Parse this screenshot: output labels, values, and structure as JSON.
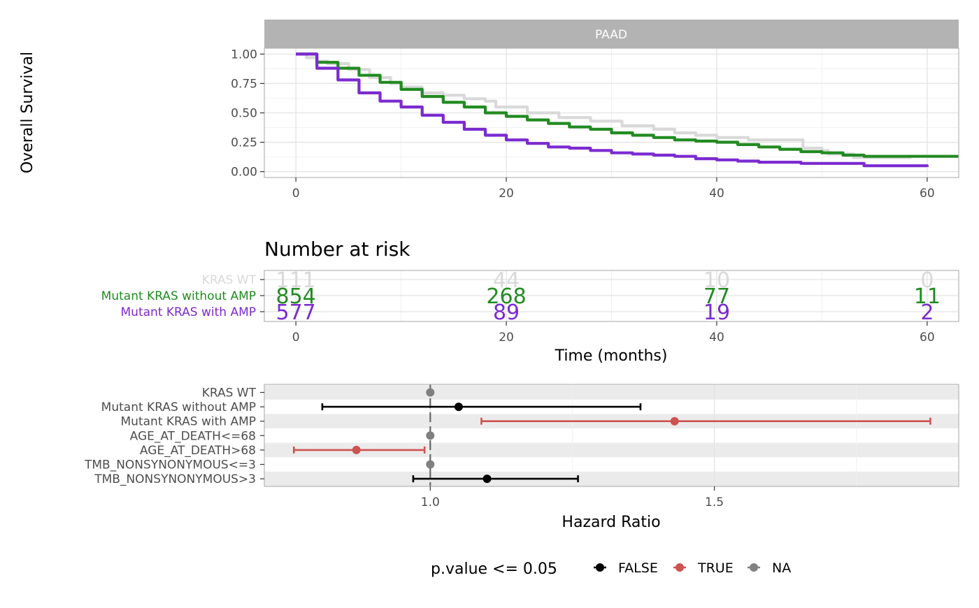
{
  "survival": {
    "panel_label": "PAAD",
    "ylabel": "Overall Survival",
    "y_ticks": [
      "0.00",
      "0.25",
      "0.50",
      "0.75",
      "1.00"
    ],
    "x_ticks": [
      "0",
      "20",
      "40",
      "60"
    ]
  },
  "risk_table": {
    "title": "Number at risk",
    "xlabel": "Time (months)",
    "x_ticks": [
      "0",
      "20",
      "40",
      "60"
    ]
  },
  "forest": {
    "xlabel": "Hazard Ratio",
    "x_ticks": [
      "1.0",
      "1.5"
    ]
  },
  "legend": {
    "title": "p.value <= 0.05",
    "items": [
      {
        "label": "FALSE",
        "color": "#000000"
      },
      {
        "label": "TRUE",
        "color": "#cd5350"
      },
      {
        "label": "NA",
        "color": "#808080"
      }
    ]
  },
  "chart_data": [
    {
      "type": "line",
      "title": "PAAD",
      "xlabel": "",
      "ylabel": "Overall Survival",
      "xlim": [
        -3,
        63
      ],
      "ylim": [
        -0.05,
        1.05
      ],
      "x_ticks": [
        0,
        20,
        40,
        60
      ],
      "y_ticks": [
        0,
        0.25,
        0.5,
        0.75,
        1.0
      ],
      "grid": true,
      "series": [
        {
          "name": "KRAS WT",
          "color": "#d9d9d9",
          "points": [
            [
              0,
              1.0
            ],
            [
              1,
              0.97
            ],
            [
              2,
              0.94
            ],
            [
              3,
              0.92
            ],
            [
              5,
              0.87
            ],
            [
              7,
              0.8
            ],
            [
              9,
              0.75
            ],
            [
              10,
              0.72
            ],
            [
              12,
              0.67
            ],
            [
              14,
              0.65
            ],
            [
              16,
              0.62
            ],
            [
              18,
              0.6
            ],
            [
              19,
              0.55
            ],
            [
              21,
              0.55
            ],
            [
              22,
              0.5
            ],
            [
              25,
              0.46
            ],
            [
              28,
              0.43
            ],
            [
              31,
              0.39
            ],
            [
              34,
              0.36
            ],
            [
              36,
              0.33
            ],
            [
              38,
              0.31
            ],
            [
              40,
              0.29
            ],
            [
              43,
              0.27
            ],
            [
              46,
              0.27
            ],
            [
              48,
              0.27
            ],
            [
              48.2,
              0.2
            ],
            [
              50,
              0.18
            ],
            [
              50.6,
              0.15
            ],
            [
              53,
              0.12
            ],
            [
              58.5,
              0.12
            ]
          ]
        },
        {
          "name": "Mutant KRAS without AMP",
          "color": "#228b22",
          "points": [
            [
              0,
              1.0
            ],
            [
              2,
              0.93
            ],
            [
              4,
              0.88
            ],
            [
              6,
              0.82
            ],
            [
              8,
              0.76
            ],
            [
              10,
              0.7
            ],
            [
              12,
              0.64
            ],
            [
              14,
              0.59
            ],
            [
              16,
              0.55
            ],
            [
              18,
              0.5
            ],
            [
              20,
              0.47
            ],
            [
              22,
              0.44
            ],
            [
              24,
              0.41
            ],
            [
              26,
              0.38
            ],
            [
              28,
              0.36
            ],
            [
              30,
              0.33
            ],
            [
              32,
              0.31
            ],
            [
              34,
              0.29
            ],
            [
              36,
              0.27
            ],
            [
              38,
              0.26
            ],
            [
              40,
              0.25
            ],
            [
              42,
              0.23
            ],
            [
              44,
              0.21
            ],
            [
              46,
              0.19
            ],
            [
              48,
              0.17
            ],
            [
              50,
              0.16
            ],
            [
              52,
              0.14
            ],
            [
              54,
              0.13
            ],
            [
              56,
              0.13
            ],
            [
              58,
              0.13
            ],
            [
              60,
              0.13
            ],
            [
              63,
              0.13
            ]
          ]
        },
        {
          "name": "Mutant KRAS with AMP",
          "color": "#7b2bd0",
          "points": [
            [
              0,
              1.0
            ],
            [
              2,
              0.88
            ],
            [
              4,
              0.78
            ],
            [
              6,
              0.67
            ],
            [
              8,
              0.6
            ],
            [
              10,
              0.55
            ],
            [
              12,
              0.48
            ],
            [
              14,
              0.42
            ],
            [
              16,
              0.36
            ],
            [
              18,
              0.31
            ],
            [
              20,
              0.27
            ],
            [
              22,
              0.24
            ],
            [
              24,
              0.21
            ],
            [
              26,
              0.2
            ],
            [
              28,
              0.18
            ],
            [
              30,
              0.16
            ],
            [
              32,
              0.15
            ],
            [
              34,
              0.14
            ],
            [
              36,
              0.13
            ],
            [
              38,
              0.11
            ],
            [
              40,
              0.1
            ],
            [
              42,
              0.09
            ],
            [
              44,
              0.08
            ],
            [
              46,
              0.08
            ],
            [
              48,
              0.07
            ],
            [
              50,
              0.07
            ],
            [
              52,
              0.07
            ],
            [
              54,
              0.05
            ],
            [
              56,
              0.05
            ],
            [
              58,
              0.05
            ],
            [
              60,
              0.04
            ]
          ]
        }
      ]
    },
    {
      "type": "table",
      "title": "Number at risk",
      "xlabel": "Time (months)",
      "x": [
        0,
        20,
        40,
        60
      ],
      "rows": [
        {
          "name": "KRAS WT",
          "color": "#d9d9d9",
          "values": [
            "111",
            "44",
            "10",
            "0"
          ]
        },
        {
          "name": "Mutant KRAS without AMP",
          "color": "#228b22",
          "values": [
            "854",
            "268",
            "77",
            "11"
          ]
        },
        {
          "name": "Mutant KRAS with AMP",
          "color": "#7b2bd0",
          "values": [
            "577",
            "89",
            "19",
            "2"
          ]
        }
      ]
    },
    {
      "type": "scatter",
      "xlabel": "Hazard Ratio",
      "xlim": [
        0.708,
        1.93
      ],
      "x_ticks": [
        1.0,
        1.5
      ],
      "reference_line": 1.0,
      "legend_title": "p.value <= 0.05",
      "rows": [
        {
          "label": "KRAS WT",
          "hr": 1.0,
          "low": null,
          "high": null,
          "significant": "NA"
        },
        {
          "label": "Mutant KRAS without AMP",
          "hr": 1.05,
          "low": 0.81,
          "high": 1.37,
          "significant": "FALSE"
        },
        {
          "label": "Mutant KRAS with AMP",
          "hr": 1.43,
          "low": 1.09,
          "high": 1.88,
          "significant": "TRUE"
        },
        {
          "label": "AGE_AT_DEATH<=68",
          "hr": 1.0,
          "low": null,
          "high": null,
          "significant": "NA"
        },
        {
          "label": "AGE_AT_DEATH>68",
          "hr": 0.87,
          "low": 0.76,
          "high": 0.99,
          "significant": "TRUE"
        },
        {
          "label": "TMB_NONSYNONYMOUS<=3",
          "hr": 1.0,
          "low": null,
          "high": null,
          "significant": "NA"
        },
        {
          "label": "TMB_NONSYNONYMOUS>3",
          "hr": 1.1,
          "low": 0.97,
          "high": 1.26,
          "significant": "FALSE"
        }
      ]
    }
  ]
}
